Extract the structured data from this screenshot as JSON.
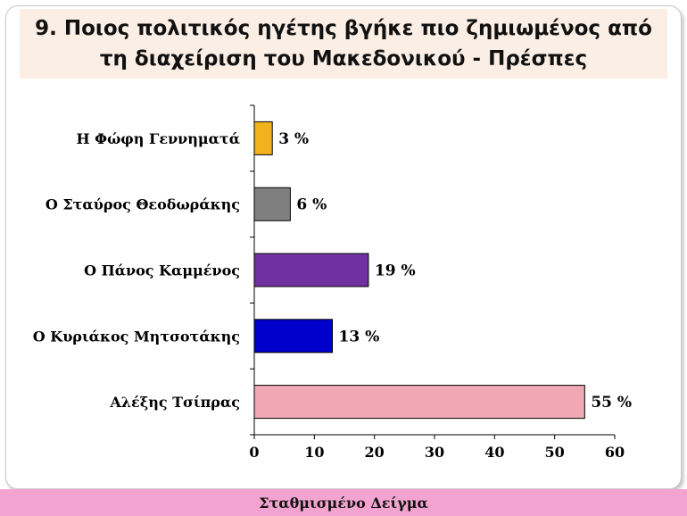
{
  "title": "9. Ποιος πολιτικός ηγέτης βγήκε πιο ζημιωμένος από τη διαχείριση του Μακεδονικού - Πρέσπες",
  "footer": "Σταθμισμένο Δείγμα",
  "chart_data": {
    "type": "bar",
    "orientation": "horizontal",
    "categories": [
      "Η Φώφη Γεννηματά",
      "Ο Σταύρος Θεοδωράκης",
      "Ο Πάνος Καμμένος",
      "Ο Κυριάκος Μητσοτάκης",
      "Αλέξης Τσίπρας"
    ],
    "values": [
      3,
      6,
      19,
      13,
      55
    ],
    "data_labels": [
      "3 %",
      "6 %",
      "19 %",
      "13 %",
      "55 %"
    ],
    "colors": [
      "#f2b21b",
      "#7f7f7f",
      "#7030a0",
      "#0000cc",
      "#f0a8b2"
    ],
    "xlim": [
      0,
      60
    ],
    "xticks": [
      0,
      10,
      20,
      30,
      40,
      50,
      60
    ],
    "grid": false,
    "legend": "none"
  }
}
